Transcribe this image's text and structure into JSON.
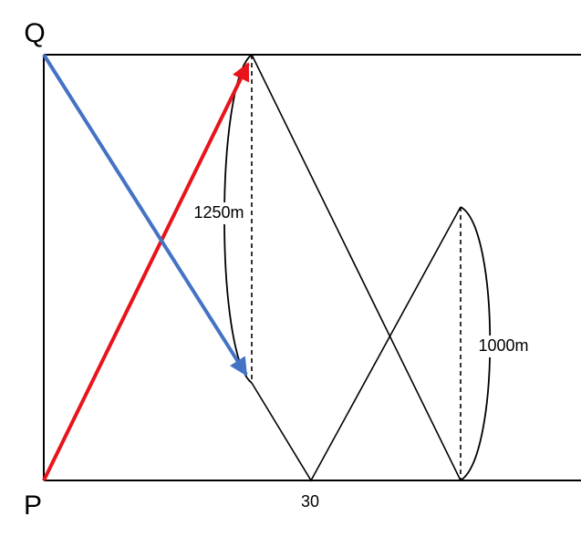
{
  "labels": {
    "top_point": "Q",
    "bottom_point": "P",
    "distance_long": "1250m",
    "distance_short": "1000m",
    "time_mark": "30"
  }
}
